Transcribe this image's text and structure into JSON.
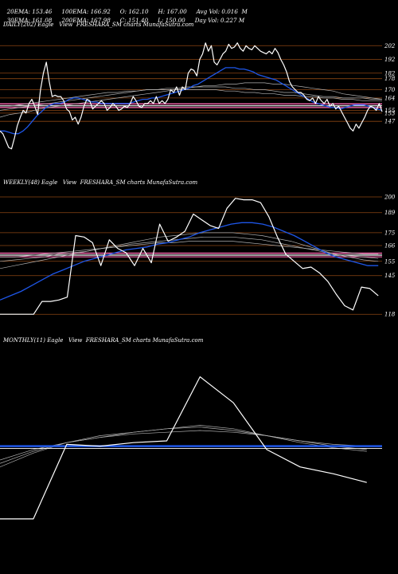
{
  "header": {
    "line1": [
      "20EMA: 153.46",
      "100EMA: 166.92",
      "O: 162.10",
      "H: 167.00",
      "Avg Vol: 0.016  M"
    ],
    "line2": [
      "30EMA: 161.08",
      "200EMA: 167.98",
      "C: 151.40",
      "L: 150.00",
      "Day Vol: 0.227 M"
    ]
  },
  "colors": {
    "background": "#000000",
    "price": "#ffffff",
    "ema_blue": "#1e56e8",
    "level_line": "#8b4513",
    "pink_band": "#ff69b4",
    "ema_grey": "#b0b0b0"
  },
  "panels": [
    {
      "title": "DAILY(202) Eagle   View  FRESHARA_SM charts MunafaSutra.com"
    },
    {
      "title": "WEEKLY(48) Eagle   View  FRESHARA_SM charts MunafaSutra.com"
    },
    {
      "title": "MONTHLY(11) Eagle   View  FRESHARA_SM charts MunafaSutra.com"
    }
  ],
  "chart_data": [
    {
      "type": "line",
      "ylim": [
        128,
        212
      ],
      "levels": [
        202,
        192,
        182,
        178,
        170,
        164,
        155,
        153,
        147
      ],
      "level_labels": [
        "202",
        "192",
        "182",
        "178",
        "170",
        "164",
        "155",
        "153",
        "147"
      ],
      "pink_level": 159,
      "price": [
        140,
        138,
        133,
        128,
        127,
        135,
        144,
        150,
        155,
        153,
        160,
        163,
        158,
        152,
        170,
        182,
        190,
        176,
        165,
        166,
        165,
        165,
        162,
        156,
        154,
        148,
        150,
        145,
        150,
        158,
        163,
        162,
        156,
        158,
        160,
        162,
        160,
        155,
        157,
        160,
        158,
        155,
        156,
        158,
        157,
        160,
        165,
        162,
        158,
        157,
        160,
        160,
        162,
        160,
        165,
        160,
        162,
        160,
        163,
        170,
        168,
        172,
        166,
        172,
        170,
        182,
        185,
        184,
        180,
        192,
        196,
        204,
        198,
        202,
        190,
        188,
        192,
        196,
        198,
        203,
        200,
        201,
        204,
        200,
        198,
        202,
        200,
        199,
        202,
        200,
        198,
        197,
        196,
        198,
        196,
        200,
        197,
        192,
        188,
        183,
        176,
        172,
        170,
        168,
        168,
        166,
        163,
        162,
        164,
        160,
        165,
        162,
        160,
        163,
        158,
        160,
        156,
        158,
        154,
        150,
        146,
        142,
        140,
        145,
        142,
        146,
        150,
        155,
        158,
        157,
        155,
        160,
        154
      ],
      "ema_blue": [
        140,
        140,
        139,
        138,
        138,
        140,
        143,
        147,
        151,
        154,
        157,
        159,
        160,
        160,
        161,
        163,
        164,
        164,
        163,
        162,
        161,
        161,
        160,
        160,
        160,
        160,
        160,
        160,
        160,
        161,
        162,
        163,
        163,
        164,
        164,
        165,
        166,
        167,
        168,
        169,
        170,
        171,
        173,
        174,
        176,
        178,
        180,
        182,
        184,
        186,
        186,
        186,
        185,
        185,
        184,
        183,
        181,
        180,
        179,
        178,
        177,
        175,
        173,
        171,
        169,
        167,
        165,
        163,
        161,
        160,
        159,
        158,
        157,
        157,
        156,
        157,
        158,
        159,
        159,
        159,
        158,
        157,
        156,
        155
      ],
      "ema_grey": [
        [
          150,
          152,
          153,
          154,
          156,
          157,
          158,
          159,
          160,
          161,
          162,
          163,
          164,
          165,
          166,
          167,
          168,
          169,
          170,
          171,
          172,
          173,
          173,
          174,
          174,
          175,
          175,
          175,
          174,
          174,
          173,
          172,
          171,
          170,
          169,
          167,
          166,
          165,
          164,
          163
        ],
        [
          155,
          156,
          157,
          158,
          159,
          160,
          161,
          162,
          163,
          164,
          165,
          166,
          167,
          168,
          169,
          170,
          170,
          171,
          171,
          172,
          172,
          172,
          172,
          172,
          171,
          171,
          170,
          170,
          169,
          168,
          168,
          167,
          166,
          165,
          165,
          164,
          164,
          164,
          163,
          163
        ],
        [
          158,
          158,
          159,
          160,
          161,
          162,
          163,
          164,
          165,
          166,
          167,
          168,
          168,
          169,
          169,
          170,
          170,
          170,
          170,
          170,
          170,
          170,
          170,
          169,
          169,
          168,
          168,
          167,
          167,
          166,
          166,
          165,
          165,
          164,
          164,
          163,
          163,
          162,
          162,
          162
        ]
      ]
    },
    {
      "type": "line",
      "ylim": [
        112,
        205
      ],
      "levels": [
        200,
        189,
        175,
        166,
        155,
        145,
        118
      ],
      "level_labels": [
        "200",
        "189",
        "175",
        "166",
        "155",
        "145",
        "118"
      ],
      "pink_level": 160,
      "price": [
        118,
        118,
        118,
        118,
        118,
        127,
        127,
        128,
        130,
        173,
        172,
        168,
        152,
        170,
        164,
        161,
        152,
        164,
        154,
        181,
        169,
        172,
        176,
        188,
        184,
        180,
        178,
        192,
        199,
        198,
        198,
        196,
        186,
        172,
        160,
        155,
        150,
        151,
        147,
        141,
        132,
        124,
        121,
        137,
        136,
        131
      ],
      "ema_blue": [
        128,
        131,
        134,
        138,
        142,
        146,
        149,
        152,
        155,
        157,
        159,
        161,
        163,
        164,
        165,
        167,
        168,
        170,
        172,
        175,
        177,
        179,
        181,
        182,
        182,
        181,
        179,
        176,
        173,
        169,
        165,
        161,
        158,
        156,
        154,
        152,
        152
      ],
      "ema_grey": [
        [
          150,
          152,
          154,
          156,
          158,
          160,
          162,
          164,
          166,
          168,
          170,
          172,
          173,
          174,
          175,
          175,
          175,
          174,
          173,
          171,
          169,
          166,
          163,
          160,
          158,
          156,
          155
        ],
        [
          155,
          156,
          157,
          158,
          160,
          161,
          162,
          164,
          165,
          167,
          168,
          169,
          170,
          171,
          172,
          172,
          172,
          171,
          170,
          168,
          166,
          164,
          162,
          160,
          159,
          158,
          157
        ],
        [
          158,
          158,
          159,
          160,
          161,
          162,
          163,
          164,
          165,
          166,
          167,
          168,
          168,
          169,
          169,
          169,
          169,
          168,
          167,
          166,
          165,
          164,
          163,
          162,
          161,
          160,
          160
        ]
      ]
    },
    {
      "type": "line",
      "ylim": [
        100,
        215
      ],
      "levels": [],
      "level_labels": [],
      "pink_level": null,
      "price": [
        118,
        118,
        161,
        160,
        162,
        163,
        200,
        185,
        158,
        148,
        144,
        139
      ],
      "ema_blue": [
        160,
        160,
        160,
        160,
        160,
        160,
        160,
        160,
        160,
        160,
        160,
        160
      ],
      "ema_grey": [
        [
          148,
          156,
          162,
          166,
          168,
          170,
          172,
          170,
          166,
          162,
          159,
          157
        ],
        [
          150,
          157,
          162,
          165,
          168,
          170,
          171,
          169,
          166,
          163,
          160,
          158
        ],
        [
          152,
          158,
          162,
          165,
          167,
          168,
          169,
          168,
          166,
          163,
          161,
          160
        ]
      ]
    }
  ]
}
